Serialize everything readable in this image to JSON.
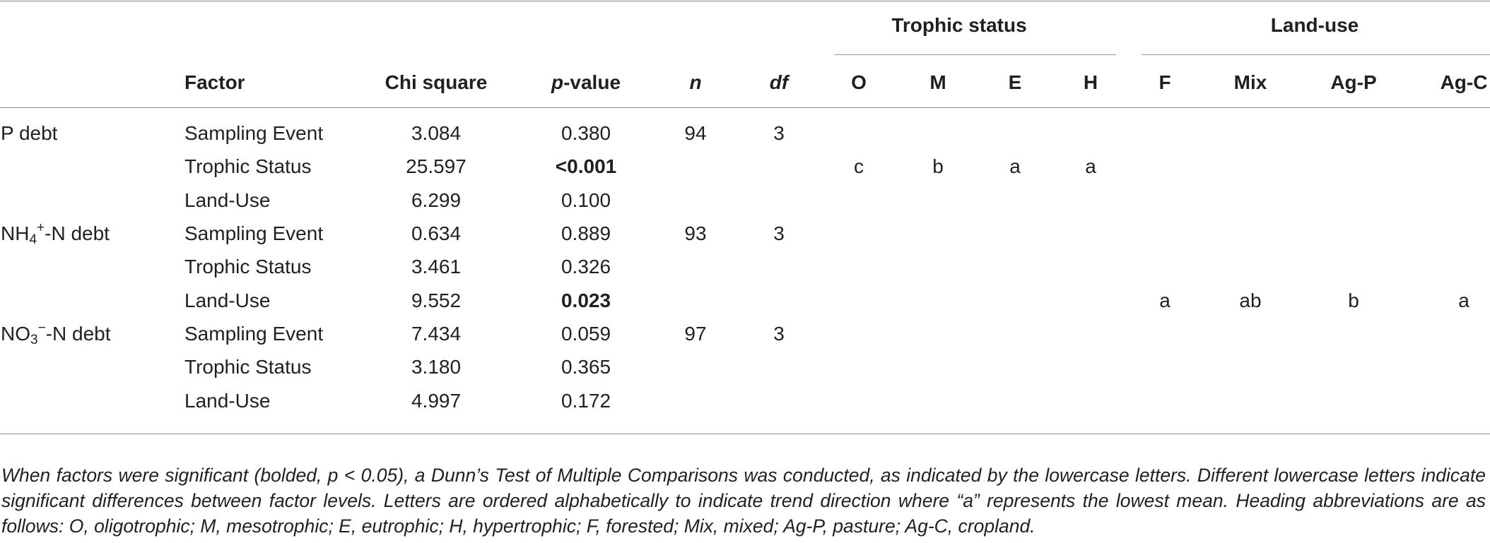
{
  "header": {
    "group_trophic": "Trophic status",
    "group_landuse": "Land-use",
    "factor": "Factor",
    "chi_square": "Chi square",
    "p_italic": "p",
    "p_rest": "-value",
    "n": "n",
    "df": "df",
    "trophic_cols": [
      "O",
      "M",
      "E",
      "H"
    ],
    "landuse_cols": [
      "F",
      "Mix",
      "Ag-P",
      "Ag-C"
    ]
  },
  "groups": [
    {
      "label_main": "P debt",
      "n": "94",
      "df": "3",
      "rows": [
        {
          "factor": "Sampling Event",
          "chi": "3.084",
          "p": "0.380"
        },
        {
          "factor": "Trophic Status",
          "chi": "25.597",
          "p": "<0.001",
          "trophic": [
            "c",
            "b",
            "a",
            "a"
          ]
        },
        {
          "factor": "Land-Use",
          "chi": "6.299",
          "p": "0.100"
        }
      ]
    },
    {
      "label_pre": "NH",
      "label_sub": "4",
      "label_sup": "+",
      "label_post": "-N debt",
      "n": "93",
      "df": "3",
      "rows": [
        {
          "factor": "Sampling Event",
          "chi": "0.634",
          "p": "0.889"
        },
        {
          "factor": "Trophic Status",
          "chi": "3.461",
          "p": "0.326"
        },
        {
          "factor": "Land-Use",
          "chi": "9.552",
          "p": "0.023",
          "landuse": [
            "a",
            "ab",
            "b",
            "a"
          ]
        }
      ]
    },
    {
      "label_pre": "NO",
      "label_sub": "3",
      "label_sup": "−",
      "label_post": "-N debt",
      "n": "97",
      "df": "3",
      "rows": [
        {
          "factor": "Sampling Event",
          "chi": "7.434",
          "p": "0.059"
        },
        {
          "factor": "Trophic Status",
          "chi": "3.180",
          "p": "0.365"
        },
        {
          "factor": "Land-Use",
          "chi": "4.997",
          "p": "0.172"
        }
      ]
    }
  ],
  "footnote": "When factors were significant (bolded, p < 0.05), a Dunn’s Test of Multiple Comparisons was conducted, as indicated by the lowercase letters. Different lowercase letters indicate significant differences between factor levels. Letters are ordered alphabetically to indicate trend direction where “a” represents the lowest mean. Heading abbreviations are as follows: O, oligotrophic; M, mesotrophic; E, eutrophic; H, hypertrophic; F, forested; Mix, mixed; Ag-P, pasture; Ag-C, cropland."
}
